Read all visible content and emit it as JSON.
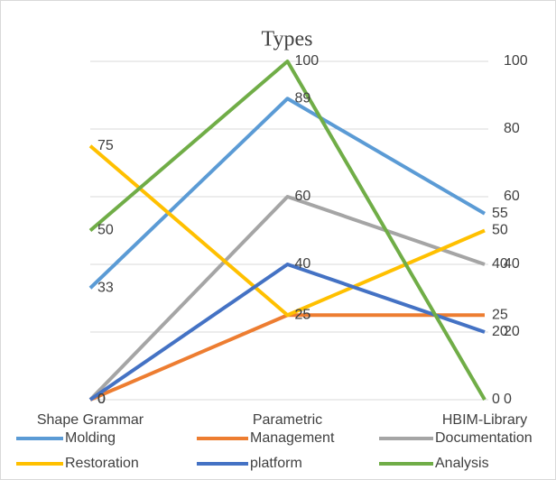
{
  "chart_data": {
    "type": "line",
    "title": "Types",
    "categories": [
      "Shape Grammar",
      "Parametric",
      "HBIM-Library"
    ],
    "series": [
      {
        "name": "Molding",
        "color": "#5b9bd5",
        "values": [
          33,
          89,
          55
        ]
      },
      {
        "name": "Management",
        "color": "#ed7d31",
        "values": [
          0,
          25,
          25
        ]
      },
      {
        "name": "Documentation",
        "color": "#a5a5a5",
        "values": [
          0,
          60,
          40
        ]
      },
      {
        "name": "Restoration",
        "color": "#ffc000",
        "values": [
          75,
          25,
          50
        ]
      },
      {
        "name": "platform",
        "color": "#4472c4",
        "values": [
          0,
          40,
          20
        ]
      },
      {
        "name": "Analysis",
        "color": "#70ad47",
        "values": [
          50,
          100,
          0
        ]
      }
    ],
    "ylim": [
      0,
      100
    ],
    "yticks": [
      0,
      20,
      40,
      60,
      80,
      100
    ],
    "grid": true,
    "legend": "bottom"
  }
}
